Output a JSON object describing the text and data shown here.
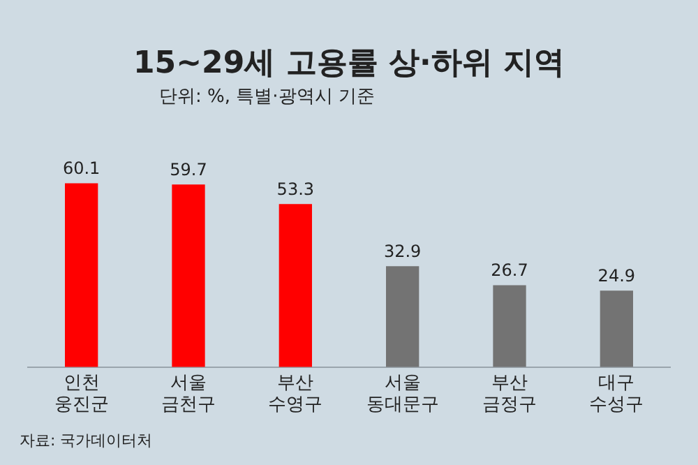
{
  "chart_data": {
    "type": "bar",
    "title": "15~29세 고용률 상·하위 지역",
    "subtitle": "단위: %, 특별·광역시 기준",
    "categories": [
      "인천 웅진군",
      "서울 금천구",
      "부산 수영구",
      "서울 동대문구",
      "부산 금정구",
      "대구 수성구"
    ],
    "values": [
      60.1,
      59.7,
      53.3,
      32.9,
      26.7,
      24.9
    ],
    "colors": [
      "#ff0000",
      "#ff0000",
      "#ff0000",
      "#737373",
      "#737373",
      "#737373"
    ],
    "data_labels": true,
    "grid": false,
    "legend": false,
    "tick_labels": "x",
    "annotations": [
      "자료: 국가데이터처"
    ]
  }
}
